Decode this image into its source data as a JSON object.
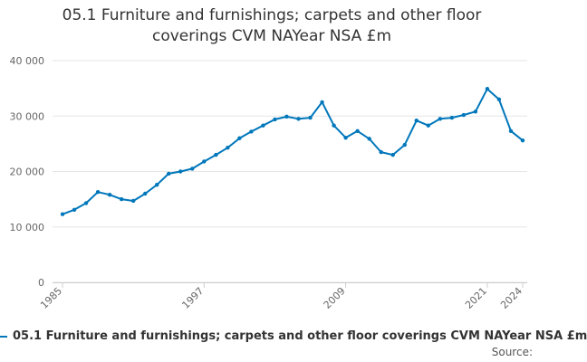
{
  "chart_data": {
    "type": "line",
    "title": "05.1 Furniture and furnishings; carpets and other floor coverings CVM NAYear NSA £m",
    "xlabel": "",
    "ylabel": "",
    "x": [
      1985,
      1986,
      1987,
      1988,
      1989,
      1990,
      1991,
      1992,
      1993,
      1994,
      1995,
      1996,
      1997,
      1998,
      1999,
      2000,
      2001,
      2002,
      2003,
      2004,
      2005,
      2006,
      2007,
      2008,
      2009,
      2010,
      2011,
      2012,
      2013,
      2014,
      2015,
      2016,
      2017,
      2018,
      2019,
      2020,
      2021,
      2022,
      2023,
      2024
    ],
    "series": [
      {
        "name": "05.1 Furniture and furnishings; carpets and other floor coverings CVM NAYear NSA £m",
        "values": [
          12300,
          13100,
          14300,
          16300,
          15800,
          15000,
          14700,
          16000,
          17600,
          19600,
          20000,
          20500,
          21800,
          23000,
          24300,
          26000,
          27200,
          28300,
          29400,
          29900,
          29500,
          29700,
          32500,
          28300,
          26100,
          27300,
          25900,
          23500,
          23000,
          24800,
          29200,
          28300,
          29500,
          29700,
          30200,
          30800,
          34900,
          33000,
          27300,
          25600
        ]
      }
    ],
    "ylim": [
      0,
      40000
    ],
    "y_ticks": [
      0,
      10000,
      20000,
      30000,
      40000
    ],
    "y_tick_labels": [
      "0",
      "10 000",
      "20 000",
      "30 000",
      "40 000"
    ],
    "x_ticks": [
      1985,
      1997,
      2009,
      2021,
      2024
    ],
    "x_tick_labels": [
      "1985",
      "1997",
      "2009",
      "2021",
      "2024"
    ],
    "grid": true,
    "legend_position": "bottom"
  },
  "colors": {
    "series": "#0077bb",
    "grid": "#e6e6e6",
    "axis": "#cccccc"
  },
  "source_label": "Source:"
}
